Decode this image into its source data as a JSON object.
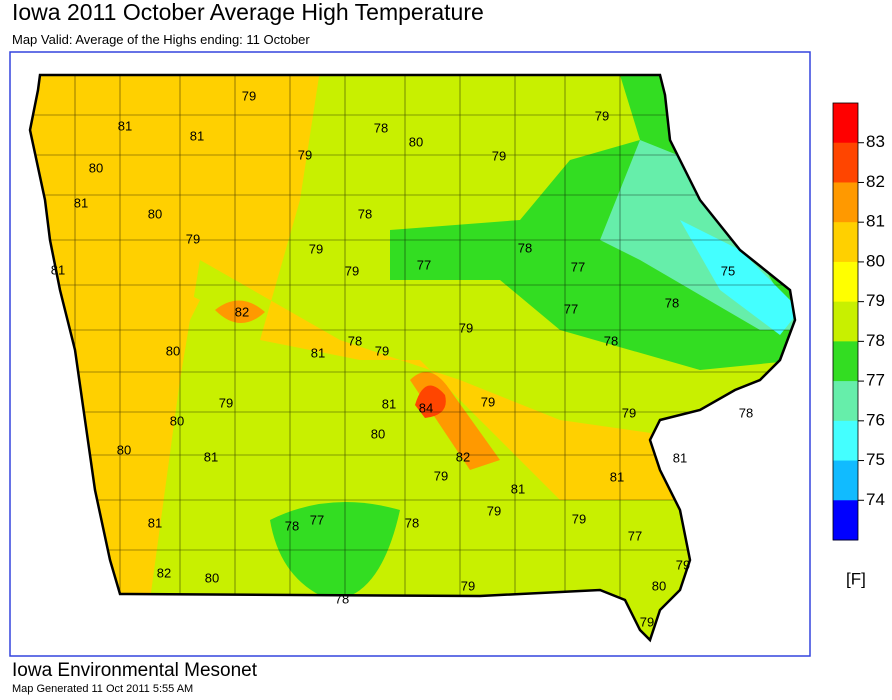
{
  "header": {
    "title": "Iowa 2011 October Average High Temperature",
    "subtitle": "Map Valid: Average of the Highs ending: 11 October"
  },
  "stations": [
    79,
    81,
    81,
    78,
    80,
    79,
    79,
    79,
    80,
    81,
    80,
    78,
    79,
    79,
    79,
    77,
    78,
    77,
    75,
    81,
    77,
    78,
    82,
    80,
    78,
    79,
    79,
    78,
    81,
    81,
    84,
    79,
    80,
    80,
    79,
    79,
    78,
    81,
    82,
    79,
    81,
    81,
    81,
    80,
    79,
    79,
    77,
    78,
    78,
    81,
    77,
    79,
    80,
    82,
    80,
    79,
    78,
    79
  ],
  "legend": {
    "levels": [
      83,
      82,
      81,
      80,
      79,
      78,
      77,
      76,
      75,
      74
    ],
    "colors": [
      "#ff0000",
      "#ff4500",
      "#ff9900",
      "#ffd000",
      "#ffff00",
      "#c8f000",
      "#33dd22",
      "#66eeaa",
      "#44ffff",
      "#11bbff",
      "#0000ff"
    ],
    "unit": "[F]"
  },
  "footer": {
    "org": "Iowa Environmental Mesonet",
    "generated": "Map Generated 11 Oct 2011 5:55 AM"
  }
}
